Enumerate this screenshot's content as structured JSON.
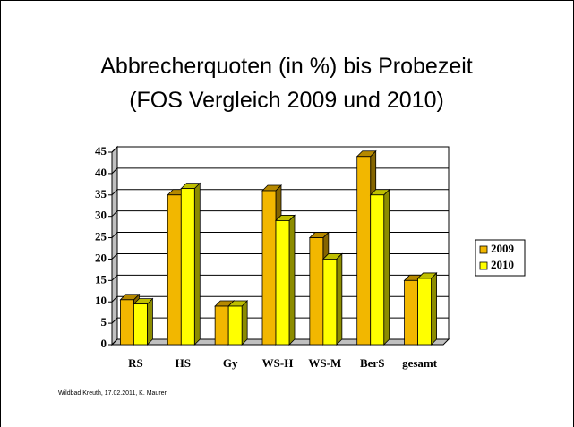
{
  "chart_data": {
    "type": "bar",
    "title": [
      "Abbrecherquoten  (in %) bis Probezeit",
      "(FOS Vergleich 2009 und 2010)"
    ],
    "footer": "Wildbad Kreuth, 17.02.2011, K. Maurer",
    "categories": [
      "RS",
      "HS",
      "Gy",
      "WS-H",
      "WS-M",
      "BerS",
      "gesamt"
    ],
    "series": [
      {
        "name": "2009",
        "color": "#f2b700",
        "values": [
          10.5,
          35,
          9,
          36,
          25,
          44,
          15
        ]
      },
      {
        "name": "2010",
        "color": "#ffff00",
        "values": [
          9.5,
          36.5,
          9,
          29,
          20,
          35,
          15.5
        ]
      }
    ],
    "ylim": [
      0,
      45
    ],
    "yticks": [
      0,
      5,
      10,
      15,
      20,
      25,
      30,
      35,
      40,
      45
    ],
    "grid": true,
    "legend": "right"
  }
}
